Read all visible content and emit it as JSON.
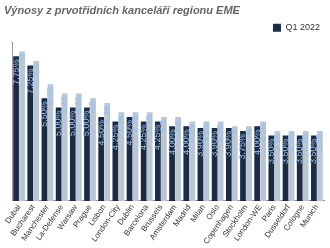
{
  "chart_data": {
    "type": "bar",
    "title": "Výnosy z prvotřídních kanceláří regionu EME",
    "categories": [
      "Dubai",
      "Bucharest",
      "Manchester",
      "La-Defense",
      "Warsaw",
      "Prague",
      "Lisbon",
      "London-City",
      "Dublin",
      "Barcelona",
      "Brussels",
      "Amsterdam",
      "Madrid",
      "Milan",
      "Oslo",
      "Copenhagen",
      "Stockholm",
      "London-WE",
      "Paris",
      "Dusseldorf",
      "Cologne",
      "Munich"
    ],
    "series": [
      {
        "name": "Q1 2022",
        "color": "#1c2a44",
        "values": [
          7.75,
          7.25,
          5.5,
          5.0,
          5.0,
          5.0,
          4.5,
          4.25,
          4.5,
          4.25,
          4.25,
          4.0,
          4.0,
          3.9,
          3.9,
          3.9,
          3.75,
          4.0,
          3.5,
          3.5,
          3.5,
          3.5
        ],
        "value_labels": [
          "7.75%",
          "7.25%",
          "5.50%",
          "5.00%",
          "5.00%",
          "5.00%",
          "4.50%",
          "4.25%",
          "4.50%",
          "4.25%",
          "4.25%",
          "4.00%",
          "4.00%",
          "3.90%",
          "3.90%",
          "3.90%",
          "3.75%",
          "4.00%",
          "3.50%",
          "3.50%",
          "3.50%",
          "3.50%"
        ]
      },
      {
        "color": "#b9c6d6",
        "values": [
          8.0,
          7.5,
          6.25,
          5.75,
          5.75,
          5.5,
          5.25,
          4.75,
          4.75,
          4.75,
          4.5,
          4.5,
          4.25,
          4.25,
          4.25,
          4.0,
          4.0,
          4.25,
          3.75,
          3.75,
          3.75,
          3.75
        ]
      }
    ],
    "ylim": [
      0,
      8.5
    ],
    "tick_labels": "x",
    "data_labels": true,
    "legend": "top-right",
    "grid": false
  }
}
